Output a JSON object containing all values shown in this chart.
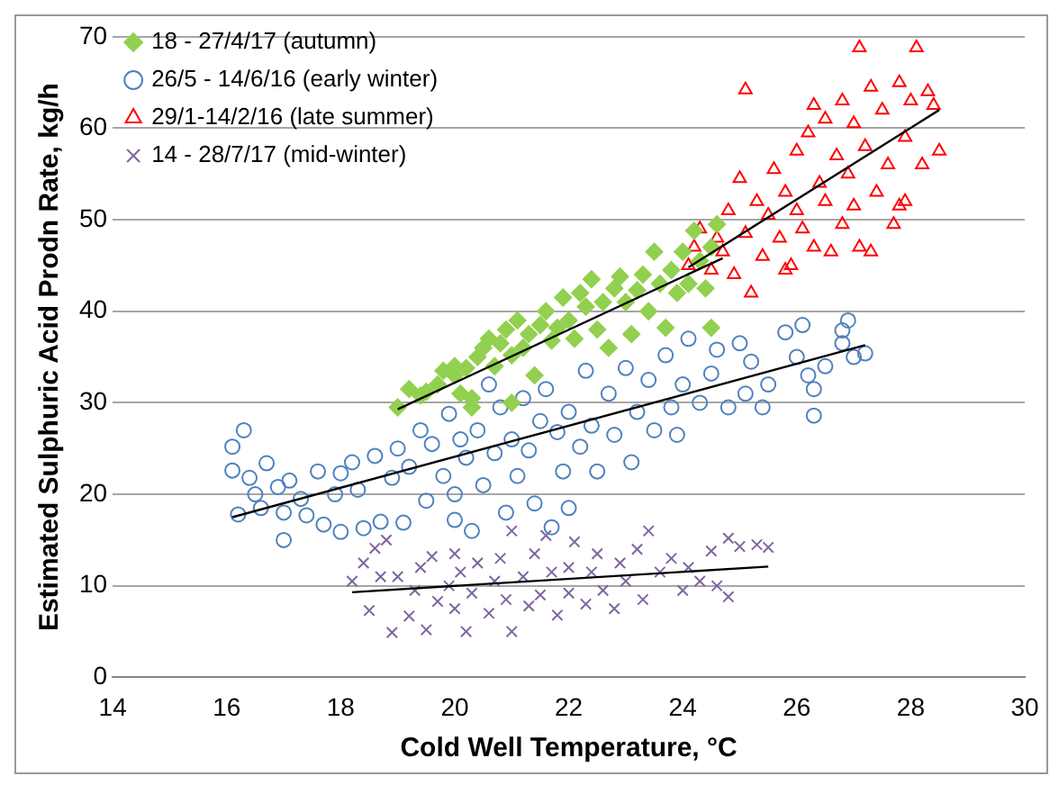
{
  "chart_data": {
    "type": "scatter",
    "xlabel": "Cold Well Temperature, °C",
    "ylabel": "Estimated Sulphuric Acid Prodn Rate, kg/h",
    "xlim": [
      14,
      30
    ],
    "xticks": [
      14,
      16,
      18,
      20,
      22,
      24,
      26,
      28,
      30
    ],
    "ylim": [
      0,
      70
    ],
    "yticks": [
      0,
      10,
      20,
      30,
      40,
      50,
      60,
      70
    ],
    "grid": "y",
    "legend": "top left",
    "series": [
      {
        "name": "18 - 27/4/17 (autumn)",
        "color": "#92d050",
        "marker": "diamond",
        "x": [
          19,
          19.2,
          19.4,
          19.5,
          19.7,
          19.8,
          20,
          20,
          20.1,
          20.2,
          20.3,
          20.4,
          20.5,
          20.6,
          20.7,
          20.8,
          20.9,
          21,
          21.1,
          21.2,
          21.3,
          21.4,
          21.5,
          21.6,
          21.7,
          21.8,
          21.9,
          22,
          22.1,
          22.2,
          22.3,
          22.4,
          22.5,
          22.6,
          22.7,
          22.8,
          22.9,
          23,
          23.1,
          23.2,
          23.3,
          23.4,
          23.5,
          23.6,
          23.7,
          23.8,
          23.9,
          24,
          24.1,
          24.2,
          24.3,
          24.4,
          24.5,
          24.6,
          24.5,
          21,
          20.3
        ],
        "values": [
          29.5,
          31.5,
          30.8,
          31.2,
          32,
          33.5,
          33,
          34,
          31,
          33.8,
          30.5,
          35,
          36,
          37,
          34,
          36.5,
          38,
          35.2,
          39,
          36,
          37.5,
          33,
          38.5,
          40,
          36.8,
          38.2,
          41.5,
          39,
          37,
          42,
          40.5,
          43.5,
          38,
          41,
          36,
          42.5,
          43.8,
          41,
          37.5,
          42.3,
          44,
          40,
          46.5,
          43,
          38.2,
          44.5,
          42,
          46.5,
          43,
          48.8,
          45.5,
          42.5,
          47,
          49.5,
          38.2,
          30,
          29.5
        ]
      },
      {
        "name": "26/5 - 14/6/16 (early winter)",
        "color": "#4f81bd",
        "marker": "circle",
        "x": [
          16.1,
          16.1,
          16.2,
          16.3,
          16.4,
          16.5,
          16.6,
          16.7,
          16.9,
          17,
          17,
          17.1,
          17.3,
          17.4,
          17.6,
          17.7,
          17.9,
          18,
          18,
          18.2,
          18.3,
          18.4,
          18.6,
          18.7,
          18.9,
          19,
          19.1,
          19.2,
          19.4,
          19.5,
          19.6,
          19.8,
          19.9,
          20,
          20,
          20.1,
          20.2,
          20.3,
          20.4,
          20.5,
          20.6,
          20.7,
          20.8,
          20.9,
          21,
          21.1,
          21.2,
          21.3,
          21.4,
          21.5,
          21.6,
          21.7,
          21.8,
          21.9,
          22,
          22,
          22.2,
          22.3,
          22.4,
          22.5,
          22.7,
          22.8,
          23,
          23.1,
          23.2,
          23.4,
          23.5,
          23.7,
          23.8,
          23.9,
          24,
          24.1,
          24.3,
          24.5,
          24.6,
          24.8,
          25,
          25.1,
          25.2,
          25.4,
          25.5,
          25.8,
          26,
          26.1,
          26.2,
          26.3,
          26.3,
          26.5,
          26.8,
          26.9,
          27,
          27.2,
          26.8
        ],
        "values": [
          25.2,
          22.6,
          17.8,
          27,
          21.8,
          20,
          18.5,
          23.4,
          20.8,
          15,
          18,
          21.5,
          19.5,
          17.7,
          22.5,
          16.7,
          20,
          15.9,
          22.3,
          23.5,
          20.5,
          16.3,
          24.2,
          17,
          21.8,
          25,
          16.9,
          23,
          27,
          19.3,
          25.5,
          22,
          28.8,
          20,
          17.2,
          26,
          24,
          16,
          27,
          21,
          32,
          24.5,
          29.5,
          18,
          26,
          22,
          30.5,
          24.8,
          19,
          28,
          31.5,
          16.4,
          26.8,
          22.5,
          18.5,
          29,
          25.2,
          33.5,
          27.5,
          22.5,
          31,
          26.5,
          33.8,
          23.5,
          29,
          32.5,
          27,
          35.2,
          29.5,
          26.5,
          32,
          37,
          30,
          33.2,
          35.8,
          29.5,
          36.5,
          31,
          34.5,
          29.5,
          32,
          37.7,
          35,
          38.5,
          33,
          31.5,
          28.6,
          34,
          36.5,
          39,
          35,
          35.4,
          37.9
        ]
      },
      {
        "name": "29/1-14/2/16 (late summer)",
        "color": "#ff0000",
        "marker": "triangle",
        "x": [
          24.1,
          24.2,
          24.3,
          24.5,
          24.6,
          24.7,
          24.8,
          24.9,
          25,
          25.1,
          25.1,
          25.2,
          25.3,
          25.4,
          25.5,
          25.6,
          25.7,
          25.8,
          25.9,
          26,
          26,
          26.1,
          26.2,
          26.3,
          26.4,
          26.5,
          26.5,
          26.6,
          26.7,
          26.8,
          26.8,
          26.9,
          27,
          27,
          27.1,
          27.1,
          27.2,
          27.3,
          27.4,
          27.5,
          27.6,
          27.7,
          27.8,
          27.9,
          27.9,
          28,
          28.1,
          28.2,
          28.3,
          28.4,
          28.5,
          27.8,
          27.3,
          25.8,
          26.3
        ],
        "values": [
          45,
          47,
          49,
          44.5,
          48,
          46.5,
          51,
          44,
          54.5,
          48.5,
          64.2,
          42,
          52,
          46,
          50.5,
          55.5,
          48,
          53,
          45,
          51,
          57.5,
          49,
          59.5,
          47,
          54,
          61,
          52,
          46.5,
          57,
          63,
          49.5,
          55,
          60.5,
          51.5,
          68.8,
          47,
          58,
          64.5,
          53,
          62,
          56,
          49.5,
          65,
          59,
          52,
          63,
          68.8,
          56,
          64,
          62.5,
          57.5,
          51.5,
          46.5,
          44.5,
          62.5
        ]
      },
      {
        "name": "14 - 28/7/17 (mid-winter)",
        "color": "#8064a2",
        "marker": "cross",
        "x": [
          18.2,
          18.4,
          18.5,
          18.6,
          18.7,
          18.8,
          18.9,
          19,
          19.2,
          19.3,
          19.4,
          19.5,
          19.6,
          19.7,
          19.9,
          20,
          20,
          20.1,
          20.2,
          20.3,
          20.4,
          20.6,
          20.7,
          20.8,
          20.9,
          21,
          21,
          21.2,
          21.3,
          21.4,
          21.5,
          21.6,
          21.7,
          21.8,
          22,
          22,
          22.1,
          22.3,
          22.4,
          22.5,
          22.6,
          22.8,
          22.9,
          23,
          23.2,
          23.3,
          23.4,
          23.6,
          23.8,
          24,
          24.1,
          24.3,
          24.5,
          24.6,
          24.8,
          24.8,
          25,
          25.3,
          25.5
        ],
        "values": [
          10.5,
          12.5,
          7.3,
          14.1,
          11,
          15,
          4.9,
          11,
          6.7,
          9.5,
          12,
          5.2,
          13.2,
          8.3,
          10,
          13.5,
          7.5,
          11.5,
          5,
          9.2,
          12.5,
          7,
          10.5,
          13,
          8.5,
          16,
          5,
          11,
          7.8,
          13.5,
          9,
          15.5,
          11.5,
          6.8,
          12,
          9.2,
          14.8,
          8,
          11.5,
          13.5,
          9.5,
          7.5,
          12.5,
          10.5,
          14,
          8.5,
          16,
          11.5,
          13,
          9.5,
          12,
          10.5,
          13.8,
          10,
          15.2,
          8.8,
          14.3,
          14.5,
          14.2
        ]
      },
      {
        "type": "line",
        "color": "#000000",
        "marker": "none",
        "x": [
          19,
          24.7
        ],
        "values": [
          29.3,
          45.8
        ]
      },
      {
        "type": "line",
        "color": "#000000",
        "marker": "none",
        "x": [
          16.1,
          27.2
        ],
        "values": [
          17.5,
          36.3
        ]
      },
      {
        "type": "line",
        "color": "#000000",
        "marker": "none",
        "x": [
          24.1,
          28.5
        ],
        "values": [
          44.8,
          62
        ]
      },
      {
        "type": "line",
        "color": "#000000",
        "marker": "none",
        "x": [
          18.2,
          25.5
        ],
        "values": [
          9.3,
          12.1
        ]
      }
    ]
  }
}
